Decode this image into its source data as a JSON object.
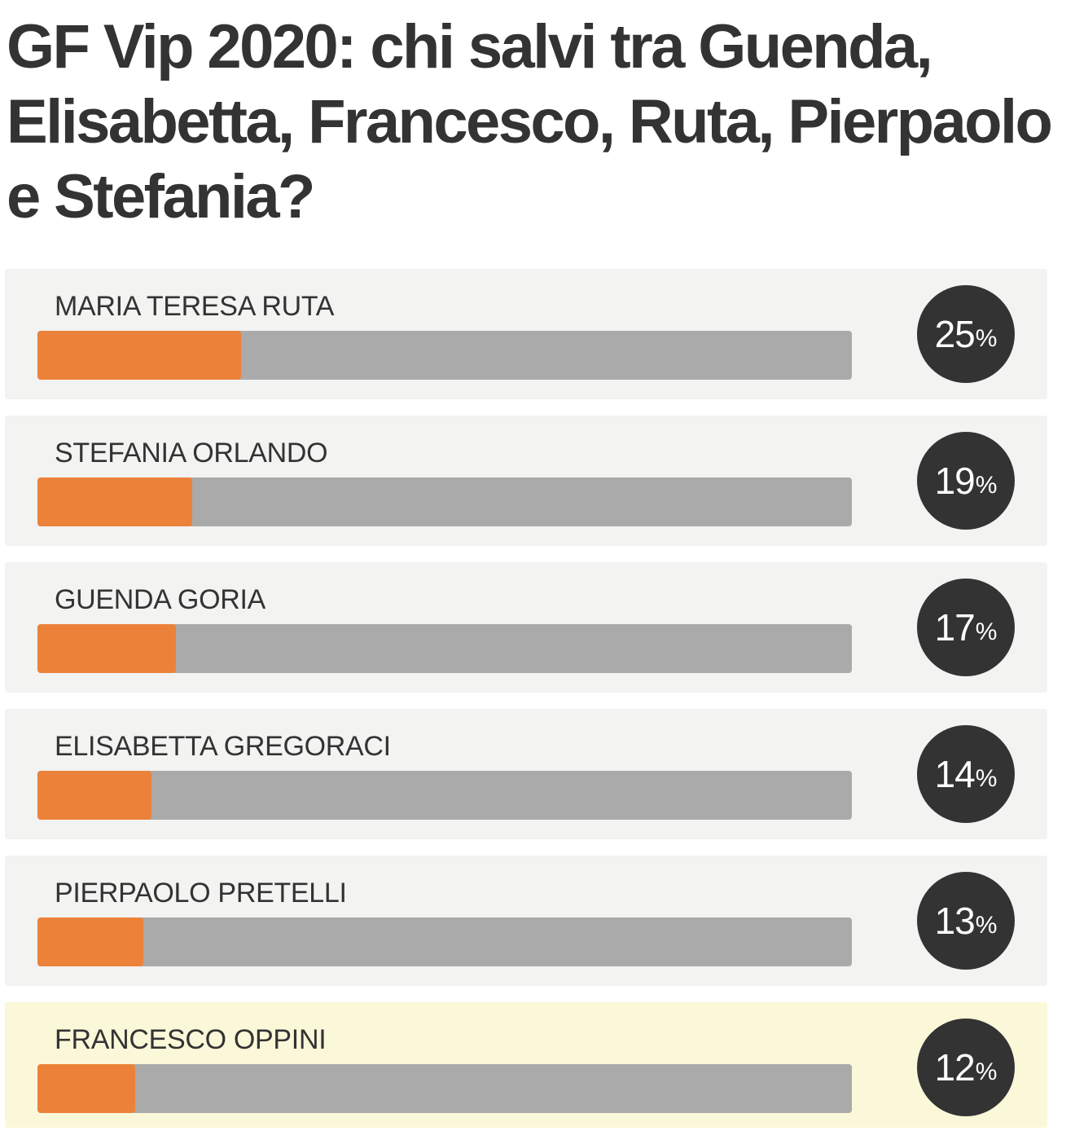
{
  "poll": {
    "title": "GF Vip 2020: chi salvi tra Guenda, Elisabetta, Francesco, Ruta, Pierpaolo e Stefania?",
    "percent_sign": "%",
    "colors": {
      "bar_fill": "#ec823a",
      "bar_track": "#aaaaaa",
      "badge": "#333333",
      "row_background": "#f3f3f2",
      "row_highlight": "#fbf8d9"
    },
    "options": [
      {
        "name": "MARIA TERESA RUTA",
        "percent": 25,
        "percent_text": "25",
        "highlighted": false
      },
      {
        "name": "STEFANIA ORLANDO",
        "percent": 19,
        "percent_text": "19",
        "highlighted": false
      },
      {
        "name": "GUENDA GORIA",
        "percent": 17,
        "percent_text": "17",
        "highlighted": false
      },
      {
        "name": "ELISABETTA GREGORACI",
        "percent": 14,
        "percent_text": "14",
        "highlighted": false
      },
      {
        "name": "PIERPAOLO PRETELLI",
        "percent": 13,
        "percent_text": "13",
        "highlighted": false
      },
      {
        "name": "FRANCESCO OPPINI",
        "percent": 12,
        "percent_text": "12",
        "highlighted": true
      }
    ]
  }
}
